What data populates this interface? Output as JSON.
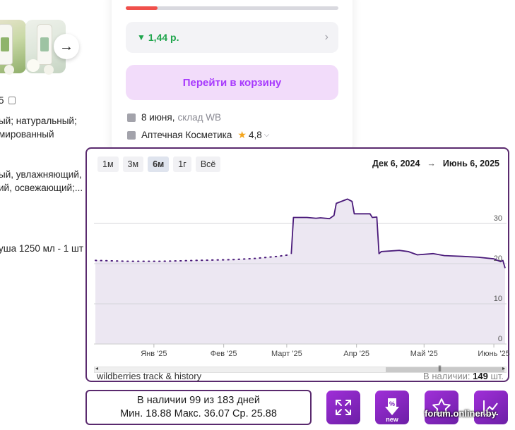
{
  "product": {
    "thumb_icons": [
      "shower-gel-bottle-image",
      "shower-gel-bottle-image"
    ],
    "next_arrow": "→",
    "code_fragment": "5",
    "desc_lines": [
      "ый; натуральный;",
      "мированный",
      "ый, увлажняющий,",
      "ий, освежающий;...",
      "уша 1250 мл - 1 шт"
    ]
  },
  "card": {
    "progress_pct": 15,
    "progress_color": "#f0504b",
    "price_change": "1,44 р.",
    "price_arrow": "▼",
    "cart_button": "Перейти в корзину",
    "delivery_date": "8 июня,",
    "delivery_warehouse": "склад WB",
    "seller": "Аптечная Косметика",
    "rating": "4,8"
  },
  "history": {
    "ranges": [
      "1м",
      "3м",
      "6м",
      "1г",
      "Всё"
    ],
    "active_range": "6м",
    "date_from": "Дек 6, 2024",
    "date_arrow": "→",
    "date_to": "Июнь 6, 2025",
    "credit": "wildberries track & history",
    "stock_label": "В наличии:",
    "stock_count": "149",
    "stock_unit": "шт."
  },
  "stats": {
    "line1": "В наличии 99 из 183 дней",
    "line2": "Мин. 18.88 Макс. 36.07 Ср. 25.88"
  },
  "actions": [
    {
      "name": "expand-icon",
      "label": ""
    },
    {
      "name": "discount-new-icon",
      "label": "new"
    },
    {
      "name": "star-icon",
      "label": ""
    },
    {
      "name": "price-chart-icon",
      "label": ""
    }
  ],
  "watermark": "forum.onliner.by",
  "chart_data": {
    "type": "area",
    "x_ticks": [
      "Янв '25",
      "Фев '25",
      "Март '25",
      "Апр '25",
      "Май '25",
      "Июнь '25"
    ],
    "y_ticks": [
      "0",
      "10",
      "20",
      "30"
    ],
    "ylim": [
      0,
      40
    ],
    "xlim": [
      "2024-12-06",
      "2025-06-06"
    ],
    "grid": true,
    "color": "#4a1a7a",
    "fill": "#ece7f2",
    "series": [
      {
        "style": "dotted",
        "points": [
          [
            "2024-12-06",
            20.8
          ],
          [
            "2024-12-20",
            20.6
          ],
          [
            "2025-01-05",
            20.6
          ],
          [
            "2025-01-20",
            20.8
          ],
          [
            "2025-02-05",
            21.0
          ],
          [
            "2025-02-15",
            21.3
          ],
          [
            "2025-02-25",
            21.8
          ],
          [
            "2025-03-02",
            22.2
          ]
        ]
      },
      {
        "style": "solid",
        "points": [
          [
            "2025-03-03",
            22.4
          ],
          [
            "2025-03-04",
            31.5
          ],
          [
            "2025-03-10",
            31.5
          ],
          [
            "2025-03-14",
            31.3
          ],
          [
            "2025-03-16",
            31.4
          ],
          [
            "2025-03-20",
            31.2
          ],
          [
            "2025-03-22",
            32.0
          ],
          [
            "2025-03-23",
            35.0
          ],
          [
            "2025-03-28",
            36.07
          ],
          [
            "2025-03-30",
            35.5
          ],
          [
            "2025-03-31",
            32.4
          ],
          [
            "2025-04-07",
            32.4
          ],
          [
            "2025-04-08",
            31.5
          ],
          [
            "2025-04-10",
            31.6
          ],
          [
            "2025-04-11",
            22.5
          ],
          [
            "2025-04-12",
            23.0
          ],
          [
            "2025-04-20",
            23.3
          ],
          [
            "2025-04-24",
            23.0
          ],
          [
            "2025-04-28",
            22.2
          ],
          [
            "2025-05-05",
            22.5
          ],
          [
            "2025-05-10",
            22.0
          ],
          [
            "2025-05-18",
            21.8
          ],
          [
            "2025-05-25",
            21.6
          ],
          [
            "2025-06-01",
            21.2
          ],
          [
            "2025-06-04",
            20.5
          ],
          [
            "2025-06-05",
            20.8
          ],
          [
            "2025-06-06",
            18.88
          ]
        ]
      }
    ]
  }
}
